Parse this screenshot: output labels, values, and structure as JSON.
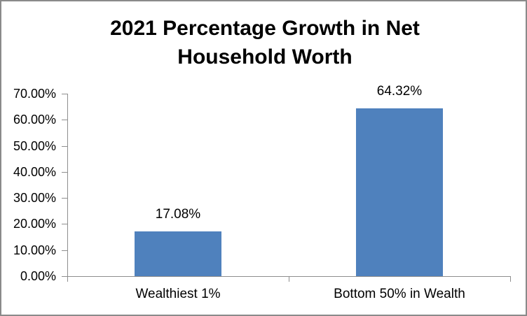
{
  "window": {
    "background_color": "#ffffff",
    "border_color": "#8a8a8a"
  },
  "chart_data": {
    "type": "bar",
    "title": "2021 Percentage Growth in Net Household Worth",
    "categories": [
      "Wealthiest 1%",
      "Bottom 50% in Wealth"
    ],
    "values": [
      17.08,
      64.32
    ],
    "data_labels": [
      "17.08%",
      "64.32%"
    ],
    "y_ticks": [
      0,
      10,
      20,
      30,
      40,
      50,
      60,
      70
    ],
    "y_tick_labels": [
      "0.00%",
      "10.00%",
      "20.00%",
      "30.00%",
      "40.00%",
      "50.00%",
      "60.00%",
      "70.00%"
    ],
    "ylim": [
      0,
      70
    ],
    "xlabel": "",
    "ylabel": "",
    "grid": false,
    "legend": "none",
    "bar_color": "#4f81bd",
    "axis_color": "#8e8e8e",
    "text_color": "#000000"
  }
}
